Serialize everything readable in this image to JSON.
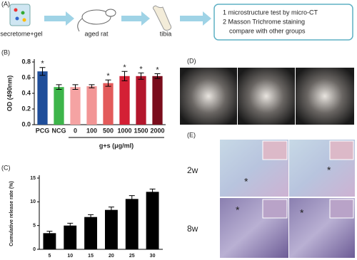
{
  "panel_a": {
    "label": "(A)",
    "steps": [
      "secretome+gel",
      "aged rat",
      "tibia"
    ],
    "box": [
      "1  microstructure test by micro-CT",
      "2  Masson Trichrome staining",
      "compare with other groups"
    ]
  },
  "chart_data": [
    {
      "type": "bar",
      "label": "(B)",
      "y_label": "OD (490nm)",
      "categories": [
        "PCG",
        "NCG",
        "0",
        "100",
        "500",
        "1000",
        "1500",
        "2000"
      ],
      "group_label": "g+s (μg/ml)",
      "values": [
        0.68,
        0.48,
        0.48,
        0.49,
        0.53,
        0.62,
        0.62,
        0.62
      ],
      "errors": [
        0.05,
        0.03,
        0.03,
        0.02,
        0.04,
        0.06,
        0.04,
        0.03
      ],
      "significance": [
        "*",
        null,
        null,
        null,
        "*",
        "*",
        "*",
        "*"
      ],
      "colors": [
        "#1f4e9a",
        "#3db54a",
        "#f5a3a3",
        "#f29595",
        "#e35b5b",
        "#d42035",
        "#b3162c",
        "#7a0d1c"
      ],
      "ylim": [
        0,
        0.8
      ],
      "yticks": [
        {
          "value": 0,
          "label": "0.0"
        },
        0.2,
        0.4,
        0.6,
        0.8
      ]
    },
    {
      "type": "bar",
      "label": "(C)",
      "y_label": "Cumulative release rate (%)",
      "categories": [
        "5",
        "10",
        "15",
        "20",
        "25",
        "30"
      ],
      "values": [
        3.4,
        5.0,
        6.8,
        8.3,
        10.6,
        12.1
      ],
      "errors": [
        0.4,
        0.5,
        0.5,
        0.6,
        0.7,
        0.6
      ],
      "color": "#000000",
      "ylim": [
        0,
        15
      ],
      "yticks": [
        0,
        5,
        10,
        15
      ]
    }
  ],
  "panel_d": {
    "label": "(D)"
  },
  "panel_e": {
    "label": "(E)",
    "rows": [
      "2w",
      "8w"
    ],
    "asterisk": "*"
  }
}
